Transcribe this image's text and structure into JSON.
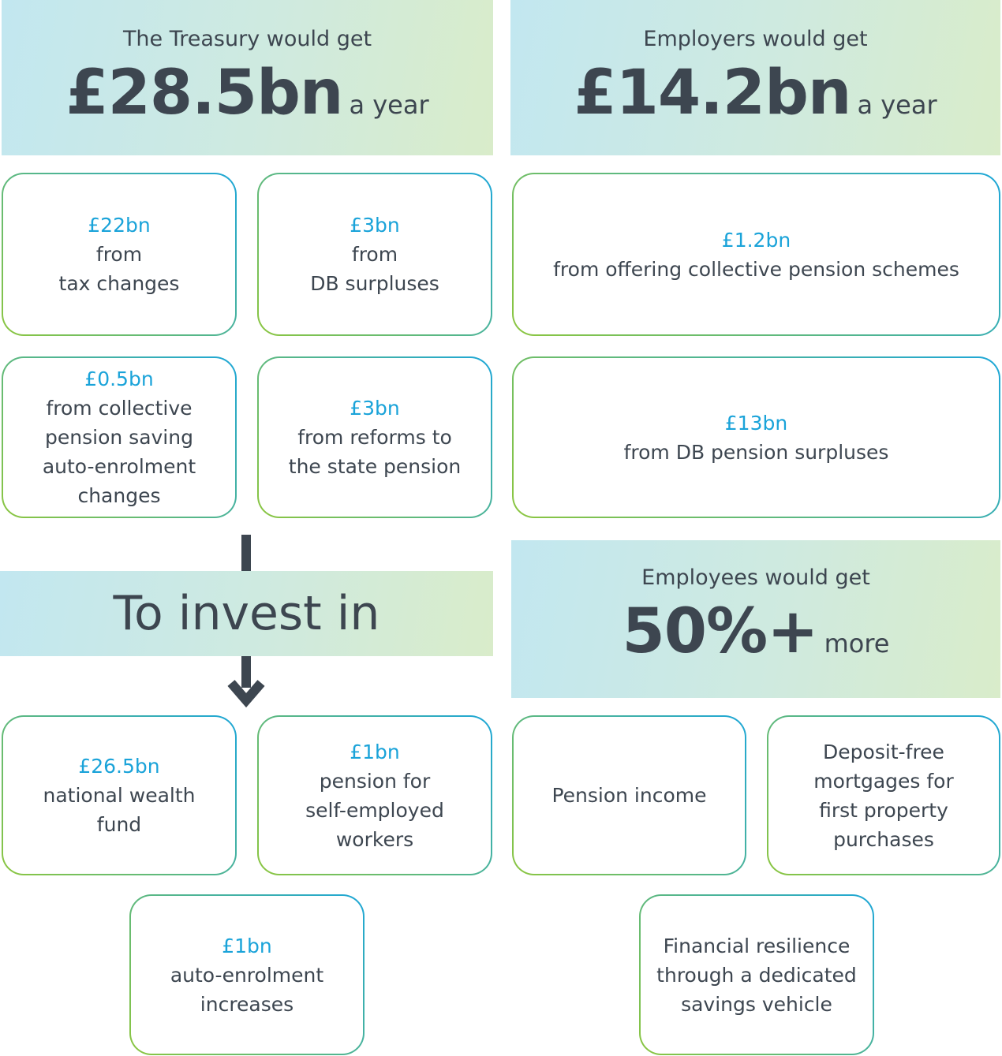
{
  "treasury": {
    "heading": "The Treasury would get",
    "amount": "£28.5bn",
    "period": "a year",
    "items": [
      {
        "amount": "£22bn",
        "label": "from\ntax changes"
      },
      {
        "amount": "£3bn",
        "label": "from\nDB surpluses"
      },
      {
        "amount": "£0.5bn",
        "label": "from collective\npension saving\nauto-enrolment\nchanges"
      },
      {
        "amount": "£3bn",
        "label": "from reforms to\nthe state pension"
      }
    ]
  },
  "employers": {
    "heading": "Employers would get",
    "amount": "£14.2bn",
    "period": "a year",
    "items": [
      {
        "amount": "£1.2bn",
        "label": "from offering collective pension schemes"
      },
      {
        "amount": "£13bn",
        "label": "from DB pension surpluses"
      }
    ]
  },
  "invest": {
    "heading": "To invest in",
    "items": [
      {
        "amount": "£26.5bn",
        "label": "national wealth\nfund"
      },
      {
        "amount": "£1bn",
        "label": "pension for\nself-employed\nworkers"
      },
      {
        "amount": "£1bn",
        "label": "auto-enrolment\nincreases"
      }
    ]
  },
  "employees": {
    "heading": "Employees would get",
    "amount": "50%+",
    "period": "more",
    "items": [
      {
        "label": "Pension income"
      },
      {
        "label": "Deposit-free\nmortgages for\nfirst property\npurchases"
      },
      {
        "label": "Financial resilience\nthrough a dedicated\nsavings vehicle"
      }
    ]
  }
}
